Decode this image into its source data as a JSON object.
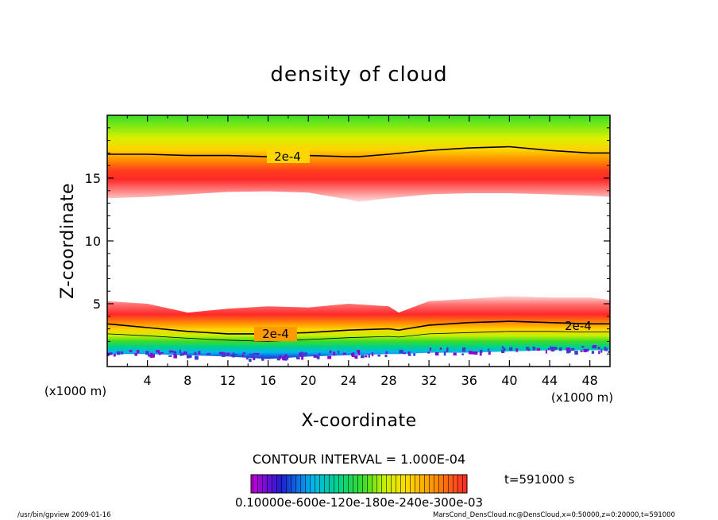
{
  "chart_data": {
    "type": "heatmap",
    "title": "density of cloud",
    "xlabel": "X-coordinate",
    "ylabel": "Z-coordinate",
    "x_unit_left": "(x1000 m)",
    "x_unit_right": "(x1000 m)",
    "xlim": [
      0,
      50
    ],
    "ylim": [
      0,
      20
    ],
    "x_ticks": [
      4,
      8,
      12,
      16,
      20,
      24,
      28,
      32,
      36,
      40,
      44,
      48
    ],
    "y_ticks": [
      5,
      10,
      15
    ],
    "contour_interval_label": "CONTOUR INTERVAL = 1.000E-04",
    "time_label": "t=591000 s",
    "colorbar_labels": "0.10000e-600e-120e-180e-240e-300e-03",
    "contour_labels": [
      "2e-4",
      "2e-4",
      "2e-4"
    ],
    "upper_layer": {
      "x": [
        0,
        4,
        8,
        12,
        16,
        20,
        24,
        25,
        28,
        32,
        36,
        40,
        44,
        48,
        50
      ],
      "bottom": [
        13.4,
        13.5,
        13.7,
        13.9,
        13.95,
        13.85,
        13.3,
        13.1,
        13.4,
        13.7,
        13.8,
        13.8,
        13.7,
        13.6,
        13.5
      ],
      "contour_2e4": [
        16.9,
        16.9,
        16.8,
        16.8,
        16.7,
        16.8,
        16.7,
        16.7,
        16.9,
        17.2,
        17.4,
        17.5,
        17.2,
        17.0,
        17.0
      ],
      "peak_z": 14.7
    },
    "lower_layer": {
      "x": [
        0,
        4,
        8,
        12,
        16,
        20,
        24,
        28,
        29,
        32,
        36,
        40,
        44,
        48,
        50
      ],
      "top": [
        5.2,
        5.0,
        4.3,
        4.6,
        4.8,
        4.7,
        5.0,
        4.8,
        4.3,
        5.2,
        5.4,
        5.6,
        5.5,
        5.5,
        5.3
      ],
      "contour_2e4": [
        3.4,
        3.1,
        2.8,
        2.6,
        2.6,
        2.7,
        2.9,
        3.0,
        2.9,
        3.3,
        3.5,
        3.6,
        3.5,
        3.4,
        3.4
      ],
      "bottom": [
        1.0,
        1.0,
        0.9,
        0.8,
        0.6,
        0.8,
        0.9,
        1.0,
        1.0,
        1.1,
        1.1,
        1.2,
        1.3,
        1.3,
        1.3
      ]
    },
    "colormap": [
      "#ffffff",
      "#c800d8",
      "#1e1ed2",
      "#00b4f0",
      "#00d28c",
      "#3cdc28",
      "#c8f000",
      "#ffdc00",
      "#ff9600",
      "#ff2828",
      "#ff8c8c",
      "#ffe6e6"
    ]
  },
  "footer": {
    "left": "/usr/bin/gpview  2009-01-16",
    "right": "MarsCond_DensCloud.nc@DensCloud,x=0:50000,z=0:20000,t=591000"
  }
}
